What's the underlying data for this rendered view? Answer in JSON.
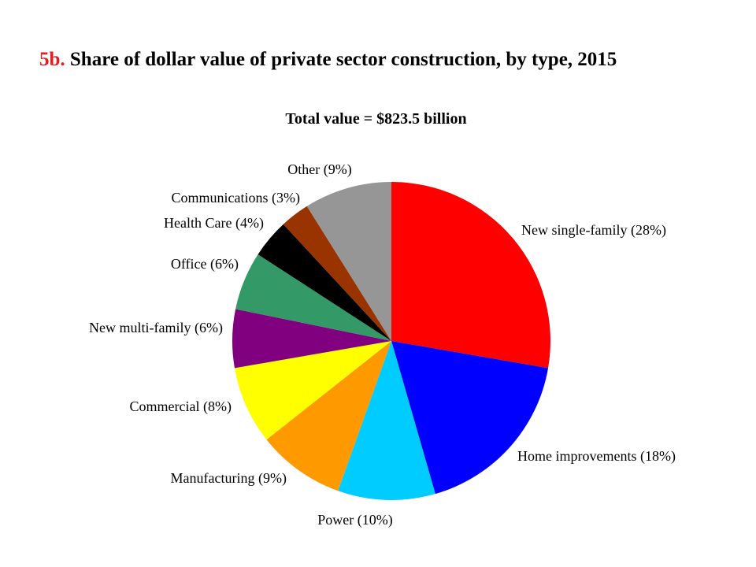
{
  "title": {
    "prefix": "5b.",
    "text": "Share of dollar value of private sector construction, by type, 2015"
  },
  "chart_data": {
    "type": "pie",
    "subtitle": "Total value = $823.5 billion",
    "start_angle_deg": 0,
    "direction": "clockwise",
    "slices": [
      {
        "name": "New single-family",
        "value": 28,
        "label": "New single-family  (28%)",
        "color": "#ff0000"
      },
      {
        "name": "Home improvements",
        "value": 18,
        "label": "Home improvements  (18%)",
        "color": "#0000ff"
      },
      {
        "name": "Power",
        "value": 10,
        "label": "Power (10%)",
        "color": "#00ccff"
      },
      {
        "name": "Manufacturing",
        "value": 9,
        "label": "Manufacturing  (9%)",
        "color": "#ff9900"
      },
      {
        "name": "Commercial",
        "value": 8,
        "label": "Commercial  (8%)",
        "color": "#ffff00"
      },
      {
        "name": "New multi-family",
        "value": 6,
        "label": "New multi-family  (6%)",
        "color": "#800080"
      },
      {
        "name": "Office",
        "value": 6,
        "label": "Office (6%)",
        "color": "#339966"
      },
      {
        "name": "Health Care",
        "value": 4,
        "label": "Health Care  (4%)",
        "color": "#000000"
      },
      {
        "name": "Communications",
        "value": 3,
        "label": "Communications  (3%)",
        "color": "#993300"
      },
      {
        "name": "Other",
        "value": 9,
        "label": "Other  (9%)",
        "color": "#969696"
      }
    ]
  }
}
